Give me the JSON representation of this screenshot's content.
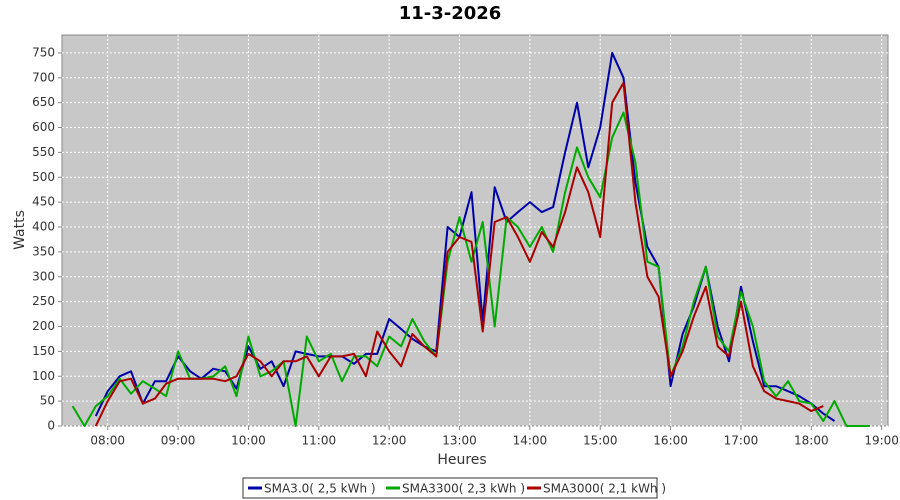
{
  "chart_data": {
    "type": "line",
    "title": "11-3-2026",
    "x_label": "Heures",
    "y_label": "Watts",
    "x": [
      7.5,
      7.67,
      7.83,
      8.0,
      8.17,
      8.33,
      8.5,
      8.67,
      8.83,
      9.0,
      9.17,
      9.33,
      9.5,
      9.67,
      9.83,
      10.0,
      10.17,
      10.33,
      10.5,
      10.67,
      10.83,
      11.0,
      11.17,
      11.33,
      11.5,
      11.67,
      11.83,
      12.0,
      12.17,
      12.33,
      12.5,
      12.67,
      12.83,
      13.0,
      13.17,
      13.33,
      13.5,
      13.67,
      13.83,
      14.0,
      14.17,
      14.33,
      14.5,
      14.67,
      14.83,
      15.0,
      15.17,
      15.33,
      15.5,
      15.67,
      15.83,
      16.0,
      16.17,
      16.33,
      16.5,
      16.67,
      16.83,
      17.0,
      17.17,
      17.33,
      17.5,
      17.67,
      17.83,
      18.0,
      18.17,
      18.33,
      18.5,
      18.67,
      18.83
    ],
    "series": [
      {
        "name": "SMA3.0( 2,5 kWh )",
        "color": "#0000aa",
        "values": [
          null,
          null,
          20,
          70,
          100,
          110,
          45,
          90,
          90,
          140,
          110,
          95,
          115,
          110,
          75,
          160,
          115,
          130,
          80,
          150,
          145,
          140,
          140,
          140,
          125,
          145,
          145,
          215,
          195,
          175,
          160,
          150,
          400,
          380,
          470,
          210,
          480,
          410,
          430,
          450,
          430,
          440,
          550,
          650,
          520,
          600,
          750,
          700,
          490,
          360,
          320,
          80,
          185,
          240,
          320,
          200,
          130,
          280,
          170,
          80,
          80,
          70,
          60,
          45,
          25,
          10,
          null,
          null,
          null
        ]
      },
      {
        "name": "SMA3300( 2,3 kWh )",
        "color": "#00aa00",
        "values": [
          40,
          0,
          40,
          60,
          95,
          65,
          90,
          75,
          60,
          150,
          95,
          95,
          100,
          120,
          60,
          180,
          100,
          110,
          130,
          0,
          180,
          130,
          145,
          90,
          140,
          140,
          120,
          180,
          160,
          215,
          170,
          140,
          330,
          420,
          330,
          410,
          200,
          420,
          400,
          360,
          400,
          350,
          470,
          560,
          500,
          460,
          580,
          630,
          530,
          330,
          320,
          100,
          160,
          250,
          320,
          180,
          150,
          270,
          200,
          90,
          60,
          90,
          50,
          45,
          10,
          50,
          0,
          0,
          0
        ]
      },
      {
        "name": "SMA3000( 2,1 kWh )",
        "color": "#aa0000",
        "values": [
          null,
          null,
          0,
          50,
          90,
          95,
          45,
          55,
          85,
          95,
          95,
          95,
          95,
          90,
          100,
          145,
          130,
          100,
          130,
          130,
          140,
          100,
          140,
          140,
          145,
          100,
          190,
          150,
          120,
          185,
          160,
          140,
          350,
          380,
          370,
          190,
          410,
          420,
          380,
          330,
          390,
          360,
          430,
          520,
          470,
          380,
          650,
          690,
          450,
          300,
          260,
          100,
          150,
          220,
          280,
          160,
          140,
          250,
          120,
          70,
          55,
          50,
          45,
          30,
          40,
          null,
          null,
          null,
          null
        ]
      }
    ],
    "xlim": [
      7.35,
      19.09
    ],
    "xticks": [
      {
        "value": 8,
        "label": "08:00"
      },
      {
        "value": 9,
        "label": "09:00"
      },
      {
        "value": 10,
        "label": "10:00"
      },
      {
        "value": 11,
        "label": "11:00"
      },
      {
        "value": 12,
        "label": "12:00"
      },
      {
        "value": 13,
        "label": "13:00"
      },
      {
        "value": 14,
        "label": "14:00"
      },
      {
        "value": 15,
        "label": "15:00"
      },
      {
        "value": 16,
        "label": "16:00"
      },
      {
        "value": 17,
        "label": "17:00"
      },
      {
        "value": 18,
        "label": "18:00"
      },
      {
        "value": 19,
        "label": "19:00"
      }
    ],
    "ylim": [
      0,
      786
    ],
    "yticks": [
      0,
      50,
      100,
      150,
      200,
      250,
      300,
      350,
      400,
      450,
      500,
      550,
      600,
      650,
      700,
      750
    ],
    "grid": true,
    "legend": "bottom"
  }
}
